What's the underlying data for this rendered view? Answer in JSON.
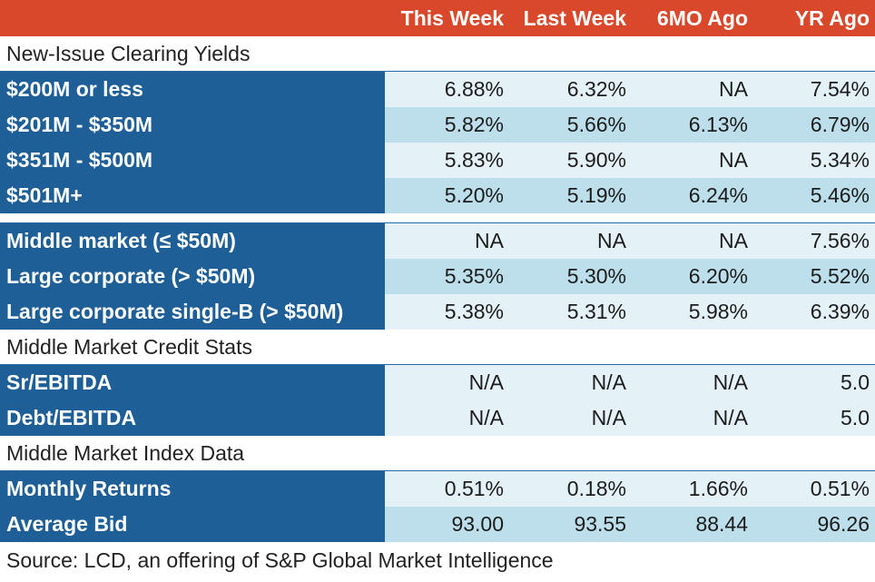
{
  "columns": [
    "This Week",
    "Last Week",
    "6MO Ago",
    "YR Ago"
  ],
  "sections": {
    "new_issue": "New-Issue Clearing Yields",
    "credit_stats": "Middle Market Credit Stats",
    "index_data": "Middle Market Index Data"
  },
  "rows": {
    "r1": {
      "label": "$200M or less",
      "values": [
        "6.88%",
        "6.32%",
        "NA",
        "7.54%"
      ]
    },
    "r2": {
      "label": "$201M - $350M",
      "values": [
        "5.82%",
        "5.66%",
        "6.13%",
        "6.79%"
      ]
    },
    "r3": {
      "label": "$351M - $500M",
      "values": [
        "5.83%",
        "5.90%",
        "NA",
        "5.34%"
      ]
    },
    "r4": {
      "label": "$501M+",
      "values": [
        "5.20%",
        "5.19%",
        "6.24%",
        "5.46%"
      ]
    },
    "r5": {
      "label": "Middle market (≤ $50M)",
      "values": [
        "NA",
        "NA",
        "NA",
        "7.56%"
      ]
    },
    "r6": {
      "label": "Large corporate (> $50M)",
      "values": [
        "5.35%",
        "5.30%",
        "6.20%",
        "5.52%"
      ]
    },
    "r7": {
      "label": "Large corporate single-B (> $50M)",
      "values": [
        "5.38%",
        "5.31%",
        "5.98%",
        "6.39%"
      ]
    },
    "r8": {
      "label": "Sr/EBITDA",
      "values": [
        "N/A",
        "N/A",
        "N/A",
        "5.0"
      ]
    },
    "r9": {
      "label": "Debt/EBITDA",
      "values": [
        "N/A",
        "N/A",
        "N/A",
        "5.0"
      ]
    },
    "r10": {
      "label": "Monthly Returns",
      "values": [
        "0.51%",
        "0.18%",
        "1.66%",
        "0.51%"
      ]
    },
    "r11": {
      "label": "Average Bid",
      "values": [
        "93.00",
        "93.55",
        "88.44",
        "96.26"
      ]
    }
  },
  "source": "Source: LCD, an offering of S&P Global Market Intelligence",
  "colors": {
    "header": "#d9482a",
    "label_band": "#1f5f98",
    "row_light": "#e4f2f8",
    "row_mid": "#bcdfeb"
  }
}
